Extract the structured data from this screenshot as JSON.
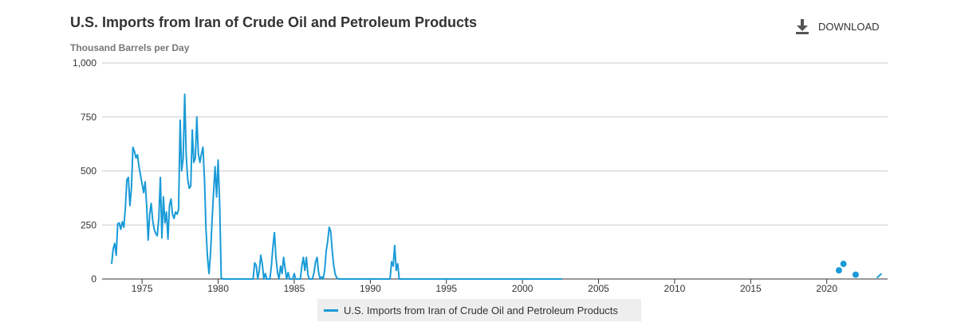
{
  "header": {
    "title": "U.S. Imports from Iran of Crude Oil and Petroleum Products",
    "download_label": "DOWNLOAD",
    "download_icon": "download-icon"
  },
  "colors": {
    "series": "#1a9bd7",
    "grid": "#cccccc",
    "axis": "#333333",
    "text": "#333333"
  },
  "legend": {
    "label": "U.S. Imports from Iran of Crude Oil and Petroleum Products"
  },
  "chart_data": {
    "type": "line",
    "title": "U.S. Imports from Iran of Crude Oil and Petroleum Products",
    "ylabel": "Thousand Barrels per Day",
    "xlabel": "",
    "xlim": [
      1973.0,
      2024.0
    ],
    "ylim": [
      0,
      1000
    ],
    "yticks": [
      0,
      250,
      500,
      750,
      1000
    ],
    "ytick_labels": [
      "0",
      "250",
      "500",
      "750",
      "1,000"
    ],
    "xticks": [
      1975,
      1980,
      1985,
      1990,
      1995,
      2000,
      2005,
      2010,
      2015,
      2020
    ],
    "xtick_labels": [
      "1975",
      "1980",
      "1985",
      "1990",
      "1995",
      "2000",
      "2005",
      "2010",
      "2015",
      "2020"
    ],
    "grid": "horizontal",
    "legend_position": "bottom-center",
    "series": [
      {
        "name": "U.S. Imports from Iran of Crude Oil and Petroleum Products",
        "segments": [
          [
            [
              1973.0,
              70
            ],
            [
              1973.1,
              140
            ],
            [
              1973.2,
              165
            ],
            [
              1973.3,
              110
            ],
            [
              1973.4,
              255
            ],
            [
              1973.5,
              260
            ],
            [
              1973.6,
              230
            ],
            [
              1973.7,
              265
            ],
            [
              1973.8,
              240
            ],
            [
              1973.9,
              330
            ],
            [
              1974.0,
              460
            ],
            [
              1974.1,
              470
            ],
            [
              1974.2,
              340
            ],
            [
              1974.3,
              420
            ],
            [
              1974.4,
              610
            ],
            [
              1974.5,
              590
            ],
            [
              1974.6,
              560
            ],
            [
              1974.7,
              575
            ],
            [
              1974.8,
              520
            ],
            [
              1974.9,
              480
            ],
            [
              1975.0,
              440
            ],
            [
              1975.1,
              400
            ],
            [
              1975.2,
              450
            ],
            [
              1975.3,
              340
            ],
            [
              1975.4,
              180
            ],
            [
              1975.5,
              300
            ],
            [
              1975.6,
              350
            ],
            [
              1975.7,
              270
            ],
            [
              1975.8,
              230
            ],
            [
              1975.9,
              210
            ],
            [
              1976.0,
              200
            ],
            [
              1976.1,
              280
            ],
            [
              1976.2,
              470
            ],
            [
              1976.3,
              190
            ],
            [
              1976.4,
              380
            ],
            [
              1976.5,
              260
            ],
            [
              1976.6,
              310
            ],
            [
              1976.7,
              185
            ],
            [
              1976.8,
              340
            ],
            [
              1976.9,
              370
            ],
            [
              1977.0,
              300
            ],
            [
              1977.1,
              280
            ],
            [
              1977.2,
              310
            ],
            [
              1977.3,
              300
            ],
            [
              1977.4,
              320
            ],
            [
              1977.5,
              735
            ],
            [
              1977.6,
              500
            ],
            [
              1977.7,
              560
            ],
            [
              1977.8,
              855
            ],
            [
              1977.9,
              570
            ],
            [
              1978.0,
              460
            ],
            [
              1978.1,
              420
            ],
            [
              1978.2,
              430
            ],
            [
              1978.3,
              690
            ],
            [
              1978.4,
              540
            ],
            [
              1978.5,
              560
            ],
            [
              1978.6,
              750
            ],
            [
              1978.7,
              580
            ],
            [
              1978.8,
              540
            ],
            [
              1978.9,
              580
            ],
            [
              1979.0,
              610
            ],
            [
              1979.1,
              460
            ],
            [
              1979.2,
              230
            ],
            [
              1979.3,
              100
            ],
            [
              1979.4,
              25
            ],
            [
              1979.5,
              120
            ],
            [
              1979.6,
              270
            ],
            [
              1979.7,
              400
            ],
            [
              1979.8,
              520
            ],
            [
              1979.9,
              380
            ],
            [
              1980.0,
              550
            ],
            [
              1980.1,
              340
            ],
            [
              1980.2,
              5
            ],
            [
              1980.3,
              0
            ],
            [
              1980.6,
              0
            ],
            [
              1981.0,
              0
            ],
            [
              1981.5,
              0
            ],
            [
              1982.0,
              0
            ],
            [
              1982.3,
              0
            ],
            [
              1982.4,
              75
            ],
            [
              1982.5,
              65
            ],
            [
              1982.6,
              0
            ],
            [
              1982.7,
              40
            ],
            [
              1982.8,
              110
            ],
            [
              1982.9,
              70
            ],
            [
              1983.0,
              0
            ],
            [
              1983.1,
              25
            ],
            [
              1983.2,
              0
            ],
            [
              1983.4,
              0
            ],
            [
              1983.5,
              60
            ],
            [
              1983.6,
              150
            ],
            [
              1983.7,
              215
            ],
            [
              1983.8,
              100
            ],
            [
              1983.9,
              30
            ],
            [
              1984.0,
              0
            ],
            [
              1984.1,
              60
            ],
            [
              1984.2,
              25
            ],
            [
              1984.3,
              100
            ],
            [
              1984.4,
              50
            ],
            [
              1984.5,
              0
            ],
            [
              1984.6,
              30
            ],
            [
              1984.7,
              0
            ],
            [
              1984.9,
              0
            ],
            [
              1985.0,
              25
            ],
            [
              1985.1,
              0
            ],
            [
              1985.4,
              0
            ],
            [
              1985.5,
              60
            ],
            [
              1985.6,
              100
            ],
            [
              1985.7,
              40
            ],
            [
              1985.8,
              100
            ],
            [
              1985.9,
              20
            ],
            [
              1986.0,
              0
            ],
            [
              1986.2,
              0
            ],
            [
              1986.3,
              30
            ],
            [
              1986.4,
              80
            ],
            [
              1986.5,
              100
            ],
            [
              1986.6,
              30
            ],
            [
              1986.7,
              0
            ],
            [
              1986.8,
              10
            ],
            [
              1986.9,
              0
            ],
            [
              1987.0,
              40
            ],
            [
              1987.1,
              130
            ],
            [
              1987.2,
              175
            ],
            [
              1987.3,
              240
            ],
            [
              1987.4,
              220
            ],
            [
              1987.5,
              130
            ],
            [
              1987.6,
              60
            ],
            [
              1987.7,
              20
            ],
            [
              1987.8,
              5
            ],
            [
              1987.9,
              0
            ],
            [
              1988.5,
              0
            ],
            [
              1989.0,
              0
            ],
            [
              1989.5,
              0
            ],
            [
              1990.0,
              0
            ],
            [
              1990.5,
              0
            ],
            [
              1991.0,
              0
            ],
            [
              1991.3,
              0
            ],
            [
              1991.4,
              80
            ],
            [
              1991.5,
              60
            ],
            [
              1991.6,
              155
            ],
            [
              1991.7,
              40
            ],
            [
              1991.8,
              70
            ],
            [
              1991.9,
              0
            ],
            [
              1992.5,
              0
            ],
            [
              1995.0,
              0
            ],
            [
              1998.0,
              0
            ],
            [
              2000.0,
              0
            ],
            [
              2002.6,
              0
            ]
          ],
          [
            [
              2023.3,
              5
            ],
            [
              2023.6,
              25
            ]
          ]
        ],
        "points": [
          [
            2020.8,
            40
          ],
          [
            2021.1,
            70
          ],
          [
            2021.9,
            20
          ]
        ]
      }
    ]
  }
}
